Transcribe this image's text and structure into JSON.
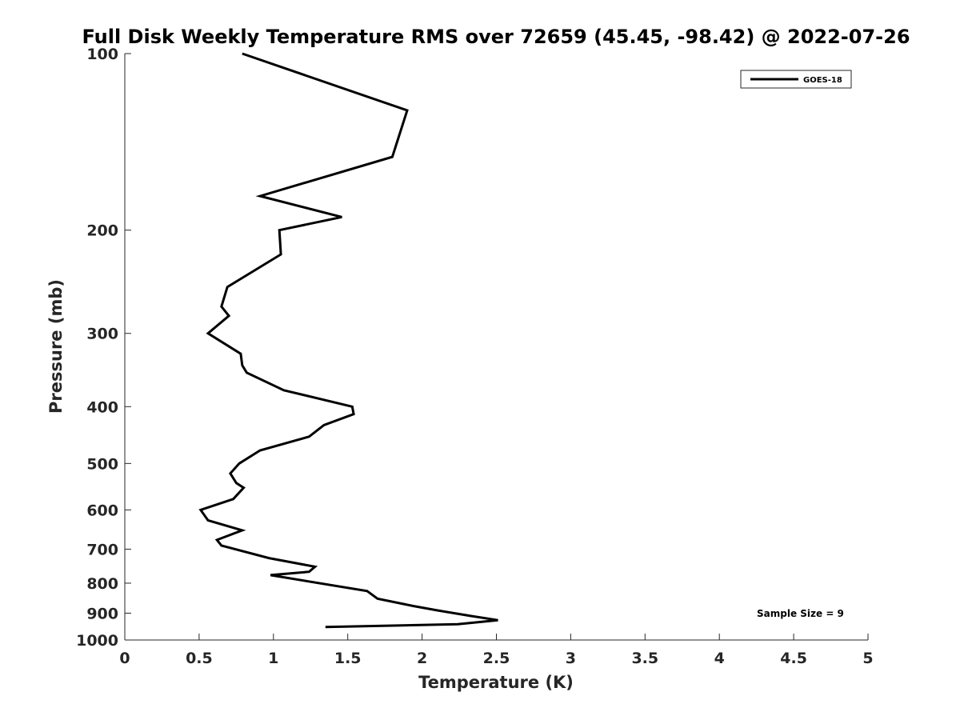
{
  "chart_data": {
    "type": "line",
    "title": "Full Disk Weekly Temperature RMS over 72659 (45.45, -98.42) @ 2022-07-26",
    "xlabel": "Temperature (K)",
    "ylabel": "Pressure (mb)",
    "xlim": [
      0,
      5
    ],
    "ylim": [
      100,
      1000
    ],
    "y_scale": "log",
    "y_reversed": true,
    "x_ticks": [
      0,
      0.5,
      1,
      1.5,
      2,
      2.5,
      3,
      3.5,
      4,
      4.5,
      5
    ],
    "x_tick_labels": [
      "0",
      "0.5",
      "1",
      "1.5",
      "2",
      "2.5",
      "3",
      "3.5",
      "4",
      "4.5",
      "5"
    ],
    "y_ticks": [
      100,
      200,
      300,
      400,
      500,
      600,
      700,
      800,
      900,
      1000
    ],
    "y_tick_labels": [
      "100",
      "200",
      "300",
      "400",
      "500",
      "600",
      "700",
      "800",
      "900",
      "1000"
    ],
    "grid": false,
    "legend_position": "top-right",
    "annotation": "Sample Size = 9",
    "series": [
      {
        "name": "GOES-18",
        "color": "#000000",
        "points": [
          [
            0.79,
            100
          ],
          [
            1.9,
            125
          ],
          [
            1.8,
            150
          ],
          [
            0.91,
            175
          ],
          [
            1.46,
            190
          ],
          [
            1.04,
            200
          ],
          [
            1.05,
            220
          ],
          [
            0.69,
            250
          ],
          [
            0.65,
            270
          ],
          [
            0.7,
            280
          ],
          [
            0.56,
            300
          ],
          [
            0.78,
            325
          ],
          [
            0.79,
            340
          ],
          [
            0.82,
            350
          ],
          [
            1.07,
            375
          ],
          [
            1.53,
            400
          ],
          [
            1.54,
            412
          ],
          [
            1.34,
            430
          ],
          [
            1.24,
            450
          ],
          [
            0.91,
            475
          ],
          [
            0.77,
            500
          ],
          [
            0.71,
            520
          ],
          [
            0.75,
            540
          ],
          [
            0.8,
            550
          ],
          [
            0.73,
            575
          ],
          [
            0.51,
            600
          ],
          [
            0.56,
            625
          ],
          [
            0.79,
            650
          ],
          [
            0.62,
            675
          ],
          [
            0.65,
            690
          ],
          [
            0.97,
            725
          ],
          [
            1.28,
            750
          ],
          [
            1.24,
            765
          ],
          [
            0.98,
            775
          ],
          [
            1.63,
            825
          ],
          [
            1.7,
            850
          ],
          [
            1.94,
            875
          ],
          [
            2.1,
            890
          ],
          [
            2.33,
            910
          ],
          [
            2.51,
            925
          ],
          [
            2.24,
            940
          ],
          [
            1.35,
            950
          ]
        ]
      }
    ]
  }
}
